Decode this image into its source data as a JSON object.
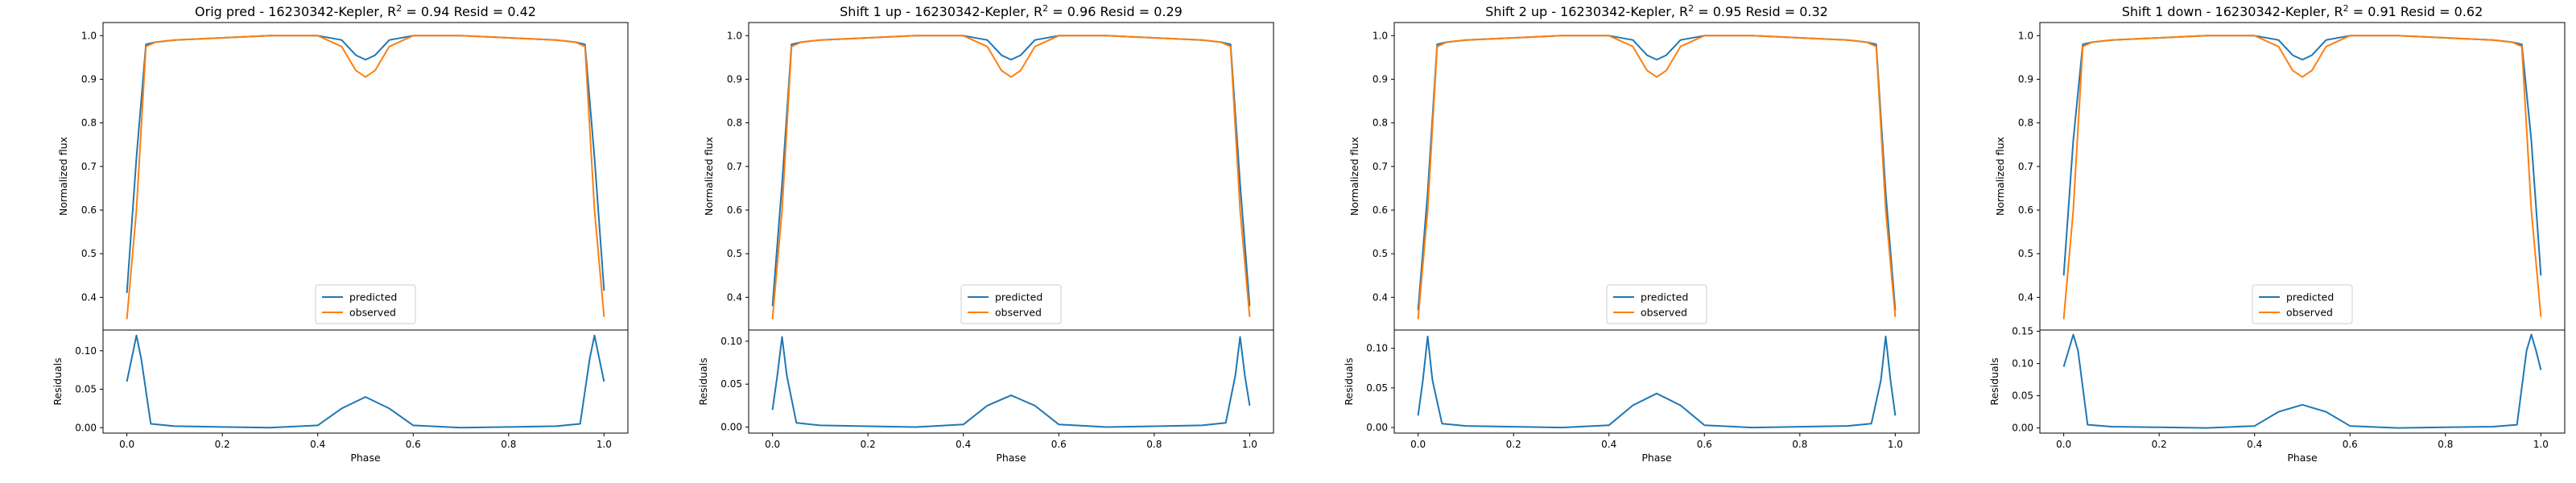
{
  "colors": {
    "predicted": "#1f77b4",
    "observed": "#ff7f0e"
  },
  "chart_data": [
    {
      "type": "line",
      "title": "Orig pred - 16230342-Kepler, R² = 0.94 Resid = 0.42",
      "xlabel": "Phase",
      "ylabel": "Normalized flux",
      "resid_ylabel": "Residuals",
      "xlim": [
        -0.05,
        1.05
      ],
      "ylim": [
        0.325,
        1.03
      ],
      "resid_ylim": [
        -0.007,
        0.127
      ],
      "x_ticks": [
        "0.0",
        "0.2",
        "0.4",
        "0.6",
        "0.8",
        "1.0"
      ],
      "y_ticks": [
        "0.4",
        "0.5",
        "0.6",
        "0.7",
        "0.8",
        "0.9",
        "1.0"
      ],
      "resid_ticks": [
        "0.00",
        "0.05",
        "0.10"
      ],
      "legend": {
        "position": "lower center",
        "entries": [
          "predicted",
          "observed"
        ]
      },
      "series": [
        {
          "name": "predicted",
          "x": [
            0,
            0.02,
            0.04,
            0.06,
            0.1,
            0.2,
            0.3,
            0.4,
            0.45,
            0.48,
            0.5,
            0.52,
            0.55,
            0.6,
            0.7,
            0.8,
            0.9,
            0.94,
            0.96,
            0.98,
            1.0
          ],
          "y": [
            0.41,
            0.72,
            0.98,
            0.985,
            0.99,
            0.995,
            1.0,
            1.0,
            0.99,
            0.955,
            0.945,
            0.955,
            0.99,
            1.0,
            1.0,
            0.995,
            0.99,
            0.985,
            0.98,
            0.72,
            0.415
          ]
        },
        {
          "name": "observed",
          "x": [
            0,
            0.02,
            0.04,
            0.06,
            0.1,
            0.2,
            0.3,
            0.4,
            0.45,
            0.48,
            0.5,
            0.52,
            0.55,
            0.6,
            0.7,
            0.8,
            0.9,
            0.94,
            0.96,
            0.98,
            1.0
          ],
          "y": [
            0.35,
            0.6,
            0.975,
            0.985,
            0.99,
            0.995,
            1.0,
            1.0,
            0.975,
            0.92,
            0.905,
            0.92,
            0.975,
            1.0,
            1.0,
            0.995,
            0.99,
            0.985,
            0.975,
            0.6,
            0.355
          ]
        },
        {
          "name": "residuals",
          "x": [
            0,
            0.01,
            0.02,
            0.03,
            0.05,
            0.1,
            0.2,
            0.3,
            0.4,
            0.45,
            0.5,
            0.55,
            0.6,
            0.7,
            0.8,
            0.9,
            0.95,
            0.97,
            0.98,
            0.99,
            1.0
          ],
          "y": [
            0.06,
            0.09,
            0.12,
            0.09,
            0.005,
            0.002,
            0.001,
            0.0,
            0.003,
            0.025,
            0.04,
            0.025,
            0.003,
            0.0,
            0.001,
            0.002,
            0.005,
            0.09,
            0.12,
            0.09,
            0.06
          ]
        }
      ]
    },
    {
      "type": "line",
      "title": "Shift 1 up - 16230342-Kepler, R² = 0.96 Resid = 0.29",
      "xlabel": "Phase",
      "ylabel": "Normalized flux",
      "resid_ylabel": "Residuals",
      "xlim": [
        -0.05,
        1.05
      ],
      "ylim": [
        0.325,
        1.03
      ],
      "resid_ylim": [
        -0.007,
        0.113
      ],
      "x_ticks": [
        "0.0",
        "0.2",
        "0.4",
        "0.6",
        "0.8",
        "1.0"
      ],
      "y_ticks": [
        "0.4",
        "0.5",
        "0.6",
        "0.7",
        "0.8",
        "0.9",
        "1.0"
      ],
      "resid_ticks": [
        "0.00",
        "0.05",
        "0.10"
      ],
      "legend": {
        "position": "lower center",
        "entries": [
          "predicted",
          "observed"
        ]
      },
      "series": [
        {
          "name": "predicted",
          "x": [
            0,
            0.02,
            0.04,
            0.06,
            0.1,
            0.2,
            0.3,
            0.4,
            0.45,
            0.48,
            0.5,
            0.52,
            0.55,
            0.6,
            0.7,
            0.8,
            0.9,
            0.94,
            0.96,
            0.98,
            1.0
          ],
          "y": [
            0.38,
            0.66,
            0.98,
            0.985,
            0.99,
            0.995,
            1.0,
            1.0,
            0.99,
            0.955,
            0.945,
            0.955,
            0.99,
            1.0,
            1.0,
            0.995,
            0.99,
            0.985,
            0.98,
            0.66,
            0.38
          ]
        },
        {
          "name": "observed",
          "x": [
            0,
            0.02,
            0.04,
            0.06,
            0.1,
            0.2,
            0.3,
            0.4,
            0.45,
            0.48,
            0.5,
            0.52,
            0.55,
            0.6,
            0.7,
            0.8,
            0.9,
            0.94,
            0.96,
            0.98,
            1.0
          ],
          "y": [
            0.35,
            0.6,
            0.975,
            0.985,
            0.99,
            0.995,
            1.0,
            1.0,
            0.975,
            0.92,
            0.905,
            0.92,
            0.975,
            1.0,
            1.0,
            0.995,
            0.99,
            0.985,
            0.975,
            0.6,
            0.355
          ]
        },
        {
          "name": "residuals",
          "x": [
            0,
            0.01,
            0.02,
            0.03,
            0.05,
            0.1,
            0.2,
            0.3,
            0.4,
            0.45,
            0.5,
            0.55,
            0.6,
            0.7,
            0.8,
            0.9,
            0.95,
            0.97,
            0.98,
            0.99,
            1.0
          ],
          "y": [
            0.02,
            0.06,
            0.105,
            0.06,
            0.005,
            0.002,
            0.001,
            0.0,
            0.003,
            0.025,
            0.037,
            0.025,
            0.003,
            0.0,
            0.001,
            0.002,
            0.005,
            0.06,
            0.105,
            0.06,
            0.025
          ]
        }
      ]
    },
    {
      "type": "line",
      "title": "Shift 2 up - 16230342-Kepler, R² = 0.95 Resid = 0.32",
      "xlabel": "Phase",
      "ylabel": "Normalized flux",
      "resid_ylabel": "Residuals",
      "xlim": [
        -0.05,
        1.05
      ],
      "ylim": [
        0.325,
        1.03
      ],
      "resid_ylim": [
        -0.007,
        0.123
      ],
      "x_ticks": [
        "0.0",
        "0.2",
        "0.4",
        "0.6",
        "0.8",
        "1.0"
      ],
      "y_ticks": [
        "0.4",
        "0.5",
        "0.6",
        "0.7",
        "0.8",
        "0.9",
        "1.0"
      ],
      "resid_ticks": [
        "0.00",
        "0.05",
        "0.10"
      ],
      "legend": {
        "position": "lower center",
        "entries": [
          "predicted",
          "observed"
        ]
      },
      "series": [
        {
          "name": "predicted",
          "x": [
            0,
            0.02,
            0.04,
            0.06,
            0.1,
            0.2,
            0.3,
            0.4,
            0.45,
            0.48,
            0.5,
            0.52,
            0.55,
            0.6,
            0.7,
            0.8,
            0.9,
            0.94,
            0.96,
            0.98,
            1.0
          ],
          "y": [
            0.37,
            0.64,
            0.98,
            0.985,
            0.99,
            0.995,
            1.0,
            1.0,
            0.99,
            0.955,
            0.945,
            0.955,
            0.99,
            1.0,
            1.0,
            0.995,
            0.99,
            0.985,
            0.98,
            0.64,
            0.37
          ]
        },
        {
          "name": "observed",
          "x": [
            0,
            0.02,
            0.04,
            0.06,
            0.1,
            0.2,
            0.3,
            0.4,
            0.45,
            0.48,
            0.5,
            0.52,
            0.55,
            0.6,
            0.7,
            0.8,
            0.9,
            0.94,
            0.96,
            0.98,
            1.0
          ],
          "y": [
            0.35,
            0.6,
            0.975,
            0.985,
            0.99,
            0.995,
            1.0,
            1.0,
            0.975,
            0.92,
            0.905,
            0.92,
            0.975,
            1.0,
            1.0,
            0.995,
            0.99,
            0.985,
            0.975,
            0.6,
            0.355
          ]
        },
        {
          "name": "residuals",
          "x": [
            0,
            0.01,
            0.02,
            0.03,
            0.05,
            0.1,
            0.2,
            0.3,
            0.4,
            0.45,
            0.5,
            0.55,
            0.6,
            0.7,
            0.8,
            0.9,
            0.95,
            0.97,
            0.98,
            0.99,
            1.0
          ],
          "y": [
            0.015,
            0.06,
            0.115,
            0.06,
            0.005,
            0.002,
            0.001,
            0.0,
            0.003,
            0.028,
            0.043,
            0.028,
            0.003,
            0.0,
            0.001,
            0.002,
            0.005,
            0.06,
            0.115,
            0.06,
            0.015
          ]
        }
      ]
    },
    {
      "type": "line",
      "title": "Shift 1 down - 16230342-Kepler, R² = 0.91 Resid = 0.62",
      "xlabel": "Phase",
      "ylabel": "Normalized flux",
      "resid_ylabel": "Residuals",
      "xlim": [
        -0.05,
        1.05
      ],
      "ylim": [
        0.325,
        1.03
      ],
      "resid_ylim": [
        -0.008,
        0.152
      ],
      "x_ticks": [
        "0.0",
        "0.2",
        "0.4",
        "0.6",
        "0.8",
        "1.0"
      ],
      "y_ticks": [
        "0.4",
        "0.5",
        "0.6",
        "0.7",
        "0.8",
        "0.9",
        "1.0"
      ],
      "resid_ticks": [
        "0.00",
        "0.05",
        "0.10",
        "0.15"
      ],
      "legend": {
        "position": "lower center",
        "entries": [
          "predicted",
          "observed"
        ]
      },
      "series": [
        {
          "name": "predicted",
          "x": [
            0,
            0.02,
            0.04,
            0.06,
            0.1,
            0.2,
            0.3,
            0.4,
            0.45,
            0.48,
            0.5,
            0.52,
            0.55,
            0.6,
            0.7,
            0.8,
            0.9,
            0.94,
            0.96,
            0.98,
            1.0
          ],
          "y": [
            0.45,
            0.76,
            0.98,
            0.985,
            0.99,
            0.995,
            1.0,
            1.0,
            0.99,
            0.955,
            0.945,
            0.955,
            0.99,
            1.0,
            1.0,
            0.995,
            0.99,
            0.985,
            0.98,
            0.76,
            0.45
          ]
        },
        {
          "name": "observed",
          "x": [
            0,
            0.02,
            0.04,
            0.06,
            0.1,
            0.2,
            0.3,
            0.4,
            0.45,
            0.48,
            0.5,
            0.52,
            0.55,
            0.6,
            0.7,
            0.8,
            0.9,
            0.94,
            0.96,
            0.98,
            1.0
          ],
          "y": [
            0.35,
            0.6,
            0.975,
            0.985,
            0.99,
            0.995,
            1.0,
            1.0,
            0.975,
            0.92,
            0.905,
            0.92,
            0.975,
            1.0,
            1.0,
            0.995,
            0.99,
            0.985,
            0.975,
            0.6,
            0.355
          ]
        },
        {
          "name": "residuals",
          "x": [
            0,
            0.01,
            0.02,
            0.03,
            0.05,
            0.1,
            0.2,
            0.3,
            0.4,
            0.45,
            0.5,
            0.55,
            0.6,
            0.7,
            0.8,
            0.9,
            0.95,
            0.97,
            0.98,
            0.99,
            1.0
          ],
          "y": [
            0.095,
            0.12,
            0.145,
            0.12,
            0.005,
            0.002,
            0.001,
            0.0,
            0.003,
            0.025,
            0.036,
            0.025,
            0.003,
            0.0,
            0.001,
            0.002,
            0.005,
            0.12,
            0.145,
            0.12,
            0.09
          ]
        }
      ]
    }
  ]
}
